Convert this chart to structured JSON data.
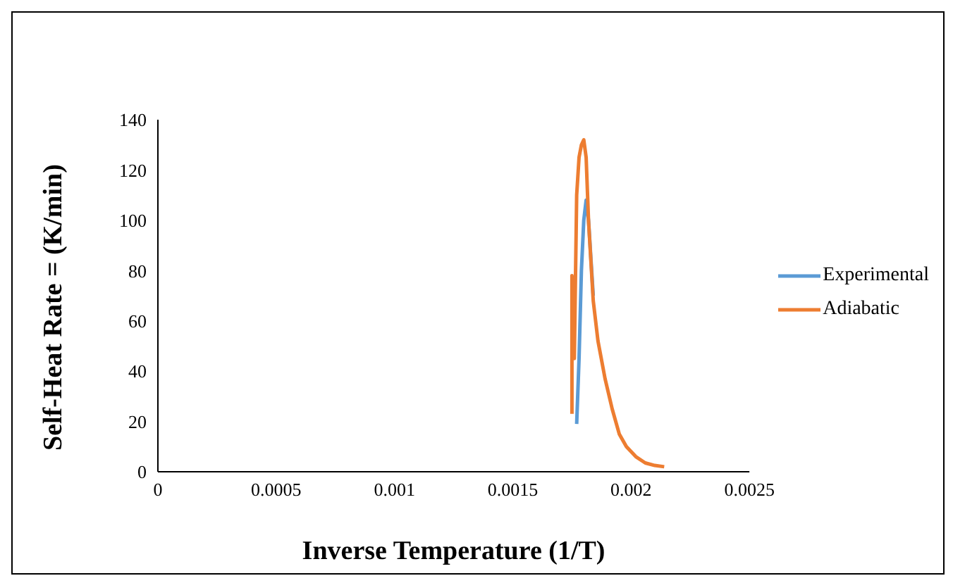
{
  "chart_data": {
    "type": "line",
    "xlabel": "Inverse Temperature (1/T)",
    "ylabel": "Self-Heat Rate = (K/min)",
    "xlim": [
      0,
      0.0025
    ],
    "xticks": [
      0,
      0.0005,
      0.001,
      0.0015,
      0.002,
      0.0025
    ],
    "ylim": [
      0,
      140
    ],
    "yticks": [
      0,
      20,
      40,
      60,
      80,
      100,
      120,
      140
    ],
    "grid": false,
    "legend": "right",
    "marker": "none",
    "line_style": "solid",
    "series": [
      {
        "name": "Experimental",
        "color": "#5b9bd5",
        "x": [
          0.00177,
          0.00178,
          0.00179,
          0.0018,
          0.00181,
          0.00182,
          0.00184
        ],
        "values": [
          19,
          45,
          80,
          100,
          108,
          100,
          70
        ]
      },
      {
        "name": "Adiabatic",
        "color": "#ed7d31",
        "x": [
          0.00175,
          0.00175,
          0.00176,
          0.00177,
          0.00178,
          0.00179,
          0.0018,
          0.00181,
          0.00182,
          0.00184,
          0.00186,
          0.00189,
          0.00192,
          0.00195,
          0.00198,
          0.00202,
          0.00206,
          0.0021,
          0.00214
        ],
        "values": [
          23,
          78,
          45,
          110,
          125,
          130,
          132,
          125,
          100,
          68,
          52,
          37,
          25,
          15,
          10,
          6,
          3.5,
          2.5,
          2
        ]
      }
    ]
  }
}
